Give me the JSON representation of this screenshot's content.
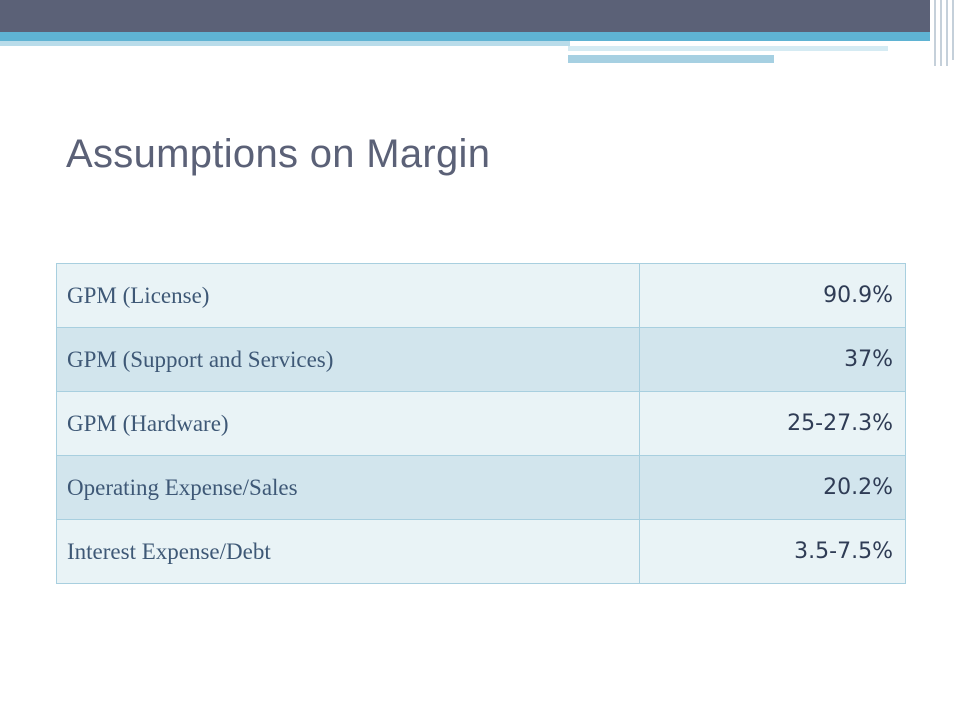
{
  "title": "Assumptions on Margin",
  "table": {
    "rows": [
      [
        "GPM (License)",
        "90.9%"
      ],
      [
        "GPM (Support and Services)",
        "37%"
      ],
      [
        "GPM (Hardware)",
        "25-27.3%"
      ],
      [
        "Operating Expense/Sales",
        "20.2%"
      ],
      [
        "Interest Expense/Debt",
        "3.5-7.5%"
      ]
    ]
  }
}
